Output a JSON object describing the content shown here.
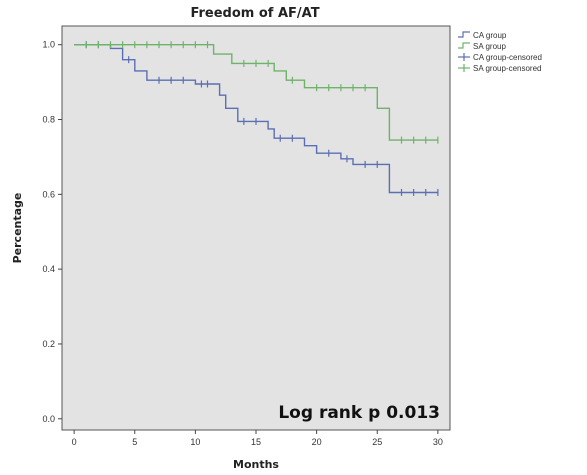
{
  "chart_data": {
    "type": "line",
    "title": "Freedom of AF/AT",
    "xlabel": "Months",
    "ylabel": "Percentage",
    "xlim": [
      -1,
      31
    ],
    "ylim": [
      -0.03,
      1.05
    ],
    "xticks": [
      "0",
      "5",
      "10",
      "15",
      "20",
      "25",
      "30"
    ],
    "xtick_values": [
      0,
      5,
      10,
      15,
      20,
      25,
      30
    ],
    "yticks": [
      "0.0",
      "0.2",
      "0.4",
      "0.6",
      "0.8",
      "1.0"
    ],
    "ytick_values": [
      0.0,
      0.2,
      0.4,
      0.6,
      0.8,
      1.0
    ],
    "grid": false,
    "background_color": "#e3e3e3",
    "legend_position": "outside-top-right",
    "legend": [
      "CA group",
      "SA group",
      "CA group-censored",
      "SA group-censored"
    ],
    "annotation": "Log rank p 0.013",
    "series": [
      {
        "name": "CA group",
        "color": "#5b6fb3",
        "steps": [
          [
            0,
            1.0
          ],
          [
            3,
            0.99
          ],
          [
            4,
            0.96
          ],
          [
            5,
            0.93
          ],
          [
            6,
            0.905
          ],
          [
            10,
            0.895
          ],
          [
            12,
            0.865
          ],
          [
            12.5,
            0.83
          ],
          [
            13.5,
            0.795
          ],
          [
            16,
            0.775
          ],
          [
            16.5,
            0.75
          ],
          [
            19,
            0.73
          ],
          [
            20,
            0.71
          ],
          [
            22,
            0.695
          ],
          [
            23,
            0.68
          ],
          [
            26,
            0.605
          ],
          [
            30,
            0.605
          ]
        ],
        "censored": [
          1,
          2,
          4.5,
          7,
          8,
          9,
          10.5,
          11,
          14,
          15,
          17,
          18,
          21,
          22.5,
          24,
          25,
          27,
          28,
          29,
          30
        ]
      },
      {
        "name": "SA group",
        "color": "#6fb36a",
        "steps": [
          [
            0,
            1.0
          ],
          [
            11.5,
            0.975
          ],
          [
            13,
            0.95
          ],
          [
            16.5,
            0.93
          ],
          [
            17.5,
            0.905
          ],
          [
            19,
            0.885
          ],
          [
            25,
            0.83
          ],
          [
            26,
            0.745
          ],
          [
            30,
            0.745
          ]
        ],
        "censored": [
          1,
          2,
          3,
          4,
          5,
          6,
          7,
          8,
          9,
          10,
          11,
          14,
          15,
          16,
          18,
          20,
          21,
          22,
          23,
          24,
          27,
          28,
          29,
          30
        ]
      }
    ]
  }
}
